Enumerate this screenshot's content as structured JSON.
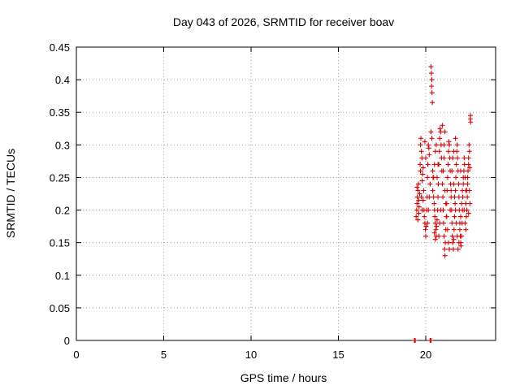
{
  "chart_data": {
    "type": "scatter",
    "title": "Day 043 of 2026, SRMTID for receiver boav",
    "xlabel": "GPS time / hours",
    "ylabel": "SRMTID / TECUs",
    "xlim": [
      0,
      24
    ],
    "ylim": [
      0,
      0.45
    ],
    "xticks": [
      0,
      5,
      10,
      15,
      20
    ],
    "xtick_labels": [
      "0",
      "5",
      "10",
      "15",
      "20"
    ],
    "yticks": [
      0,
      0.05,
      0.1,
      0.15,
      0.2,
      0.25,
      0.3,
      0.35,
      0.4,
      0.45
    ],
    "ytick_labels": [
      "0",
      "0.05",
      "0.1",
      "0.15",
      "0.2",
      "0.25",
      "0.3",
      "0.35",
      "0.4",
      "0.45"
    ],
    "grid": true,
    "marker": "plus",
    "color": "#e00000",
    "series": [
      {
        "points": [
          [
            19.35,
            0.0
          ],
          [
            19.4,
            0.0
          ],
          [
            20.25,
            0.0
          ],
          [
            20.3,
            0.0
          ],
          [
            19.45,
            0.19
          ],
          [
            19.48,
            0.2
          ],
          [
            19.5,
            0.21
          ],
          [
            19.52,
            0.22
          ],
          [
            19.55,
            0.23
          ],
          [
            19.5,
            0.235
          ],
          [
            19.58,
            0.24
          ],
          [
            19.6,
            0.215
          ],
          [
            19.62,
            0.205
          ],
          [
            19.65,
            0.225
          ],
          [
            19.55,
            0.185
          ],
          [
            19.6,
            0.195
          ],
          [
            19.68,
            0.27
          ],
          [
            19.7,
            0.3
          ],
          [
            19.72,
            0.31
          ],
          [
            19.75,
            0.29
          ],
          [
            19.78,
            0.28
          ],
          [
            19.8,
            0.245
          ],
          [
            19.82,
            0.255
          ],
          [
            19.85,
            0.265
          ],
          [
            19.88,
            0.23
          ],
          [
            19.9,
            0.2
          ],
          [
            19.92,
            0.19
          ],
          [
            19.95,
            0.18
          ],
          [
            19.98,
            0.17
          ],
          [
            20.0,
            0.16
          ],
          [
            20.02,
            0.175
          ],
          [
            20.05,
            0.2
          ],
          [
            20.08,
            0.22
          ],
          [
            20.1,
            0.25
          ],
          [
            20.12,
            0.27
          ],
          [
            20.15,
            0.3
          ],
          [
            20.18,
            0.295
          ],
          [
            20.2,
            0.285
          ],
          [
            19.95,
            0.305
          ],
          [
            20.0,
            0.28
          ],
          [
            20.3,
            0.42
          ],
          [
            20.32,
            0.41
          ],
          [
            20.35,
            0.4
          ],
          [
            20.33,
            0.39
          ],
          [
            20.36,
            0.38
          ],
          [
            20.38,
            0.365
          ],
          [
            20.3,
            0.32
          ],
          [
            20.35,
            0.31
          ],
          [
            20.4,
            0.26
          ],
          [
            20.42,
            0.25
          ],
          [
            20.45,
            0.22
          ],
          [
            20.48,
            0.21
          ],
          [
            20.5,
            0.2
          ],
          [
            20.52,
            0.19
          ],
          [
            20.55,
            0.18
          ],
          [
            20.58,
            0.17
          ],
          [
            20.6,
            0.16
          ],
          [
            20.62,
            0.175
          ],
          [
            20.65,
            0.185
          ],
          [
            20.5,
            0.165
          ],
          [
            20.55,
            0.155
          ],
          [
            20.68,
            0.2
          ],
          [
            20.7,
            0.22
          ],
          [
            20.72,
            0.24
          ],
          [
            20.75,
            0.27
          ],
          [
            20.78,
            0.29
          ],
          [
            20.8,
            0.31
          ],
          [
            20.82,
            0.325
          ],
          [
            20.85,
            0.32
          ],
          [
            20.88,
            0.3
          ],
          [
            20.9,
            0.28
          ],
          [
            20.92,
            0.26
          ],
          [
            20.95,
            0.24
          ],
          [
            20.98,
            0.22
          ],
          [
            21.0,
            0.2
          ],
          [
            21.02,
            0.18
          ],
          [
            21.05,
            0.16
          ],
          [
            21.08,
            0.14
          ],
          [
            21.1,
            0.13
          ],
          [
            21.12,
            0.15
          ],
          [
            21.15,
            0.17
          ],
          [
            21.18,
            0.19
          ],
          [
            21.2,
            0.21
          ],
          [
            21.22,
            0.23
          ],
          [
            21.25,
            0.25
          ],
          [
            21.28,
            0.27
          ],
          [
            21.3,
            0.29
          ],
          [
            21.32,
            0.305
          ],
          [
            21.35,
            0.3
          ],
          [
            21.38,
            0.28
          ],
          [
            21.4,
            0.26
          ],
          [
            21.42,
            0.24
          ],
          [
            21.45,
            0.22
          ],
          [
            21.48,
            0.2
          ],
          [
            21.5,
            0.18
          ],
          [
            21.52,
            0.16
          ],
          [
            21.55,
            0.15
          ],
          [
            21.58,
            0.14
          ],
          [
            21.6,
            0.155
          ],
          [
            21.62,
            0.17
          ],
          [
            21.65,
            0.19
          ],
          [
            21.68,
            0.21
          ],
          [
            21.7,
            0.23
          ],
          [
            21.72,
            0.25
          ],
          [
            21.75,
            0.27
          ],
          [
            21.78,
            0.29
          ],
          [
            21.8,
            0.3
          ],
          [
            21.82,
            0.28
          ],
          [
            21.85,
            0.26
          ],
          [
            21.88,
            0.24
          ],
          [
            21.9,
            0.22
          ],
          [
            21.92,
            0.2
          ],
          [
            21.95,
            0.18
          ],
          [
            21.98,
            0.16
          ],
          [
            22.0,
            0.15
          ],
          [
            22.02,
            0.145
          ],
          [
            22.05,
            0.16
          ],
          [
            22.08,
            0.18
          ],
          [
            22.1,
            0.2
          ],
          [
            22.12,
            0.22
          ],
          [
            22.15,
            0.24
          ],
          [
            22.18,
            0.26
          ],
          [
            22.2,
            0.28
          ],
          [
            22.22,
            0.27
          ],
          [
            22.25,
            0.25
          ],
          [
            22.28,
            0.23
          ],
          [
            22.3,
            0.21
          ],
          [
            22.32,
            0.19
          ],
          [
            22.35,
            0.2
          ],
          [
            22.38,
            0.22
          ],
          [
            22.4,
            0.24
          ],
          [
            22.42,
            0.26
          ],
          [
            22.45,
            0.28
          ],
          [
            22.48,
            0.3
          ],
          [
            22.5,
            0.29
          ],
          [
            22.52,
            0.265
          ],
          [
            22.55,
            0.34
          ],
          [
            22.56,
            0.345
          ],
          [
            22.57,
            0.335
          ],
          [
            22.53,
            0.21
          ],
          [
            22.5,
            0.23
          ],
          [
            22.45,
            0.195
          ],
          [
            20.6,
            0.3
          ],
          [
            20.65,
            0.25
          ],
          [
            20.7,
            0.27
          ],
          [
            20.75,
            0.16
          ],
          [
            20.8,
            0.18
          ],
          [
            20.85,
            0.2
          ],
          [
            21.0,
            0.26
          ],
          [
            21.05,
            0.28
          ],
          [
            21.1,
            0.23
          ],
          [
            21.15,
            0.21
          ],
          [
            21.2,
            0.19
          ],
          [
            21.25,
            0.17
          ],
          [
            21.3,
            0.15
          ],
          [
            21.35,
            0.14
          ],
          [
            21.4,
            0.2
          ],
          [
            21.45,
            0.23
          ],
          [
            21.5,
            0.26
          ],
          [
            21.55,
            0.28
          ],
          [
            21.6,
            0.24
          ],
          [
            21.65,
            0.22
          ],
          [
            21.7,
            0.2
          ],
          [
            21.75,
            0.18
          ],
          [
            21.8,
            0.16
          ],
          [
            21.85,
            0.14
          ],
          [
            21.9,
            0.15
          ],
          [
            21.95,
            0.17
          ],
          [
            22.0,
            0.19
          ],
          [
            22.05,
            0.21
          ],
          [
            22.1,
            0.23
          ],
          [
            22.15,
            0.25
          ],
          [
            22.2,
            0.2
          ],
          [
            22.25,
            0.18
          ],
          [
            22.3,
            0.17
          ],
          [
            22.35,
            0.23
          ],
          [
            22.4,
            0.25
          ],
          [
            22.45,
            0.27
          ],
          [
            20.1,
            0.18
          ],
          [
            20.15,
            0.2
          ],
          [
            20.2,
            0.22
          ],
          [
            20.25,
            0.24
          ],
          [
            19.7,
            0.26
          ],
          [
            19.75,
            0.22
          ],
          [
            19.8,
            0.2
          ],
          [
            19.85,
            0.215
          ],
          [
            20.4,
            0.23
          ],
          [
            20.45,
            0.25
          ],
          [
            20.5,
            0.27
          ],
          [
            20.55,
            0.29
          ],
          [
            21.05,
            0.3
          ],
          [
            21.1,
            0.32
          ],
          [
            20.95,
            0.33
          ],
          [
            21.6,
            0.29
          ],
          [
            21.7,
            0.31
          ],
          [
            22.0,
            0.26
          ]
        ]
      }
    ]
  }
}
